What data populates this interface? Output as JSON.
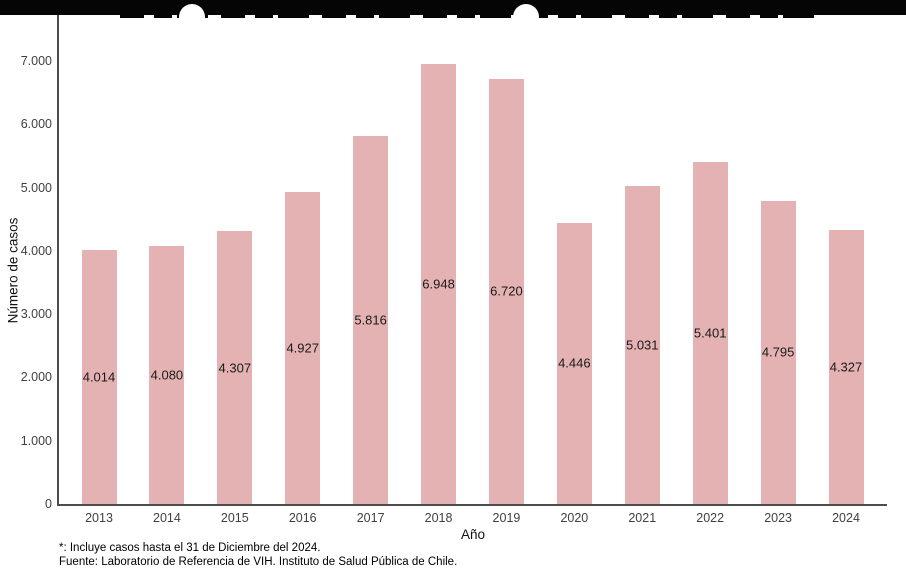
{
  "chart_data": {
    "type": "bar",
    "title": "",
    "xlabel": "Año",
    "ylabel": "Número de casos",
    "categories": [
      "2013",
      "2014",
      "2015",
      "2016",
      "2017",
      "2018",
      "2019",
      "2020",
      "2021",
      "2022",
      "2023",
      "2024"
    ],
    "values": [
      4014,
      4080,
      4307,
      4927,
      5816,
      6948,
      6720,
      4446,
      5031,
      5401,
      4795,
      4327
    ],
    "value_labels": [
      "4.014",
      "4.080",
      "4.307",
      "4.927",
      "5.816",
      "6.948",
      "6.720",
      "4.446",
      "5.031",
      "5.401",
      "4.795",
      "4.327"
    ],
    "ylim": [
      0,
      7000
    ],
    "yticks": [
      0,
      1000,
      2000,
      3000,
      4000,
      5000,
      6000,
      7000
    ],
    "ytick_labels": [
      "0",
      "1.000",
      "2.000",
      "3.000",
      "4.000",
      "5.000",
      "6.000",
      "7.000"
    ],
    "grid": false,
    "legend": "none",
    "bar_label_position": "center-of-bar"
  },
  "colors": {
    "bar_fill": "#e5b2b4",
    "axis_line": "#4d4d4d",
    "tick_text": "#404040",
    "bar_label_text": "#1a1a1a",
    "redaction_bar": "#050505"
  },
  "footnotes": {
    "line1": "*: Incluye casos hasta el 31 de Diciembre del 2024.",
    "line2": "Fuente: Laboratorio de Referencia de VIH. Instituto de Salud Pública de Chile."
  }
}
